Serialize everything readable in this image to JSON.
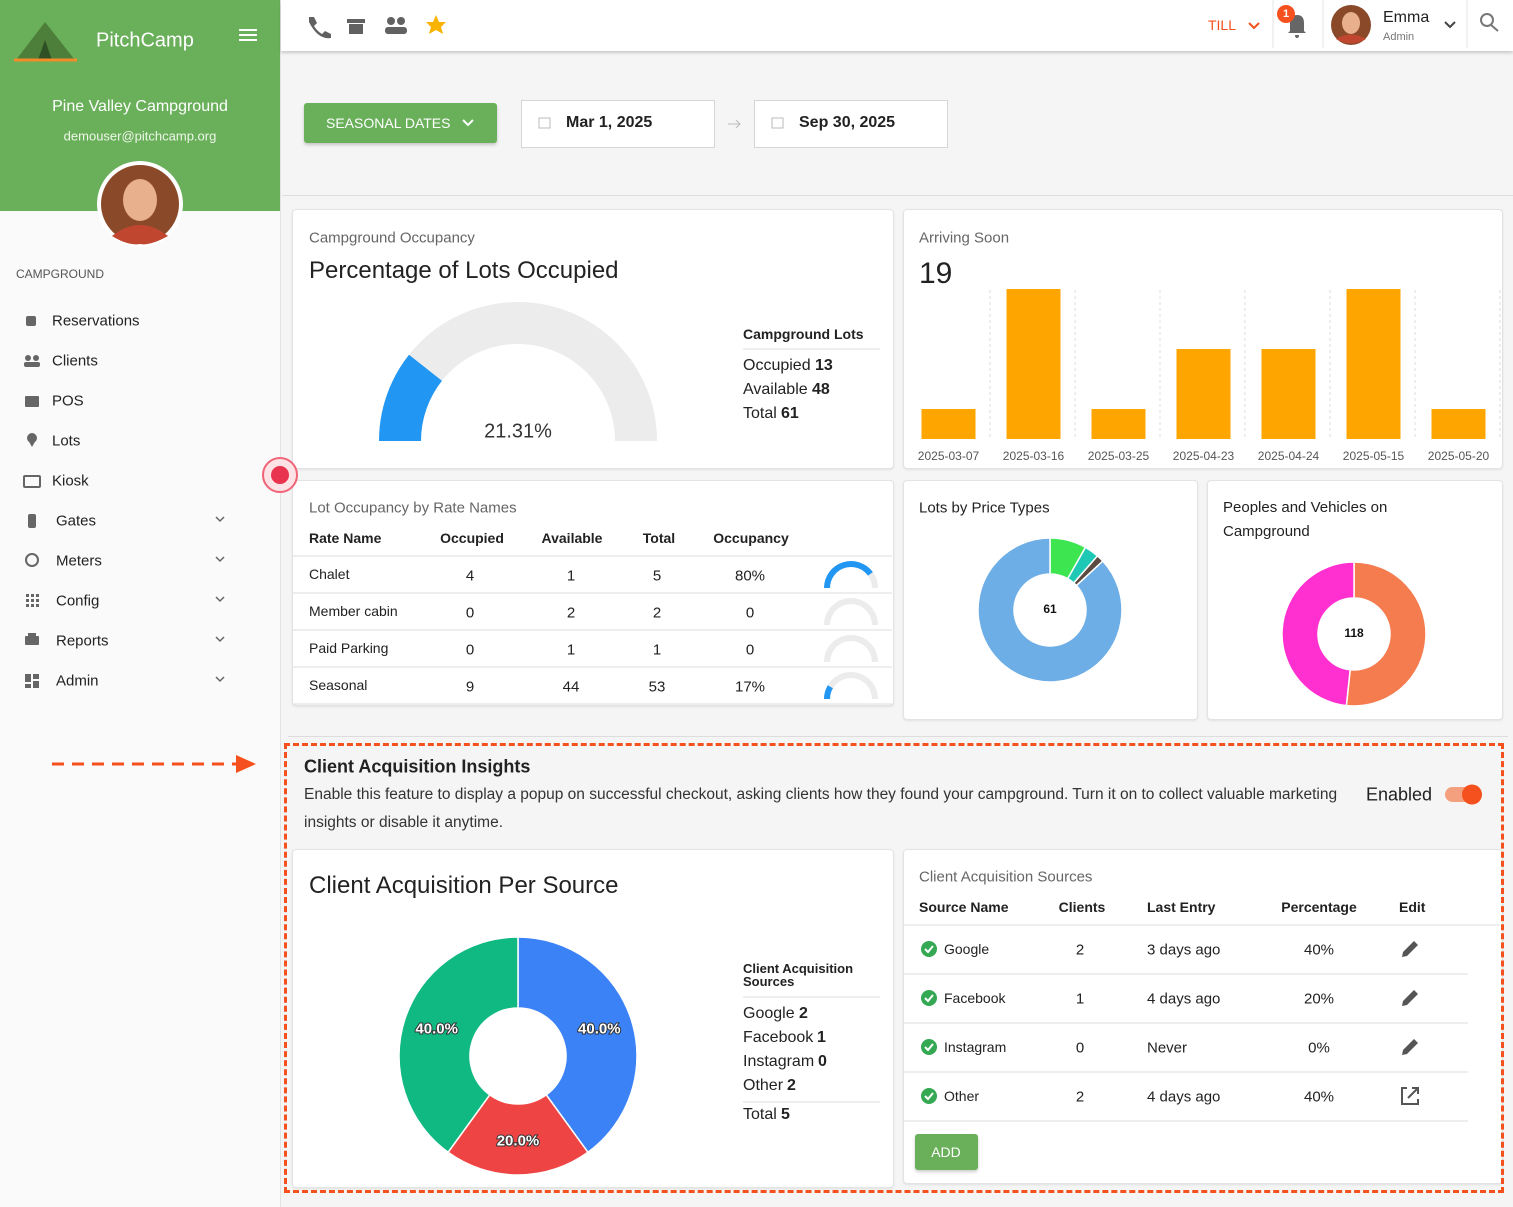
{
  "sidebar": {
    "brand": "PitchCamp",
    "campground": "Pine Valley Campground",
    "email": "demouser@pitchcamp.org",
    "section": "CAMPGROUND",
    "menu": [
      {
        "label": "Reservations",
        "submenu": false
      },
      {
        "label": "Clients",
        "submenu": false
      },
      {
        "label": "POS",
        "submenu": false
      },
      {
        "label": "Lots",
        "submenu": false
      },
      {
        "label": "Kiosk",
        "submenu": false
      },
      {
        "label": "Gates",
        "submenu": true
      },
      {
        "label": "Meters",
        "submenu": true
      },
      {
        "label": "Config",
        "submenu": true
      },
      {
        "label": "Reports",
        "submenu": true
      },
      {
        "label": "Admin",
        "submenu": true
      }
    ]
  },
  "topbar": {
    "till": "TILL",
    "notifications": 1,
    "user": {
      "name": "Emma",
      "role": "Admin"
    }
  },
  "filters": {
    "period": "SEASONAL DATES",
    "start": "Mar 1, 2025",
    "end": "Sep 30, 2025"
  },
  "occupancy_card": {
    "subtitle": "Campground Occupancy",
    "legend": {
      "title": "Campground Lots",
      "items": [
        {
          "label": "Occupied",
          "value": 13
        },
        {
          "label": "Available",
          "value": 48
        },
        {
          "label": "Total",
          "value": 61
        }
      ]
    }
  },
  "chart_data": [
    {
      "type": "gauge",
      "title": "Percentage of Lots Occupied",
      "values": [
        21.31
      ],
      "value_labels": [
        "21.31%"
      ],
      "ylim": [
        0,
        100
      ],
      "color": "#2196f3"
    },
    {
      "type": "bar",
      "title": "Arriving Soon",
      "total": 19,
      "categories": [
        "2025-03-07",
        "2025-03-16",
        "2025-03-25",
        "2025-04-23",
        "2025-04-24",
        "2025-05-15",
        "2025-05-20"
      ],
      "values": [
        1,
        5,
        1,
        3,
        3,
        5,
        1
      ],
      "ylim": [
        0,
        5
      ],
      "color": "#ffa500"
    },
    {
      "type": "donut",
      "title": "Lots by Price Types",
      "center_label": 61,
      "values": [
        5,
        2,
        1,
        53
      ],
      "colors": [
        "#3de650",
        "#1fc7b5",
        "#5a4a42",
        "#6daee6"
      ]
    },
    {
      "type": "donut",
      "title": "Peoples and Vehicles on Campground",
      "center_label": 118,
      "values": [
        61,
        57
      ],
      "colors": [
        "#f47c4f",
        "#ff2fd0"
      ]
    },
    {
      "type": "donut",
      "title": "Client Acquisition Per Source",
      "values": [
        40,
        20,
        0,
        40
      ],
      "value_labels": [
        "40.0%",
        "20.0%",
        null,
        "40.0%"
      ],
      "colors": [
        "#3b82f6",
        "#ef4444",
        null,
        "#10b981"
      ]
    }
  ],
  "rate_table": {
    "title": "Lot Occupancy by Rate Names",
    "columns": [
      "Rate Name",
      "Occupied",
      "Available",
      "Total",
      "Occupancy"
    ],
    "rows": [
      [
        "Chalet",
        4,
        1,
        5,
        {
          "value": 80,
          "label": "80%"
        }
      ],
      [
        "Member cabin",
        0,
        2,
        2,
        0
      ],
      [
        "Paid Parking",
        0,
        1,
        1,
        0
      ],
      [
        "Seasonal",
        9,
        44,
        53,
        {
          "value": 17,
          "label": "17%"
        }
      ]
    ]
  },
  "insights": {
    "title": "Client Acquisition Insights",
    "description": "Enable this feature to display a popup on successful checkout, asking clients how they found your campground. Turn it on to collect valuable marketing insights or disable it anytime.",
    "status": "Enabled",
    "enabled": true
  },
  "acquisition_legend": {
    "title": "Client Acquisition Sources",
    "items": [
      {
        "label": "Google",
        "value": 2
      },
      {
        "label": "Facebook",
        "value": 1
      },
      {
        "label": "Instagram",
        "value": 0
      },
      {
        "label": "Other",
        "value": 2
      }
    ],
    "total": {
      "label": "Total",
      "value": 5
    }
  },
  "sources_table": {
    "title": "Client Acquisition Sources",
    "columns": [
      "Source Name",
      "Clients",
      "Last Entry",
      "Percentage",
      "Edit"
    ],
    "rows": [
      [
        "Google",
        2,
        "3 days ago",
        "40%"
      ],
      [
        "Facebook",
        1,
        "4 days ago",
        "20%"
      ],
      [
        "Instagram",
        0,
        "Never",
        "0%"
      ],
      [
        "Other",
        2,
        "4 days ago",
        "40%"
      ]
    ],
    "add": "ADD"
  }
}
